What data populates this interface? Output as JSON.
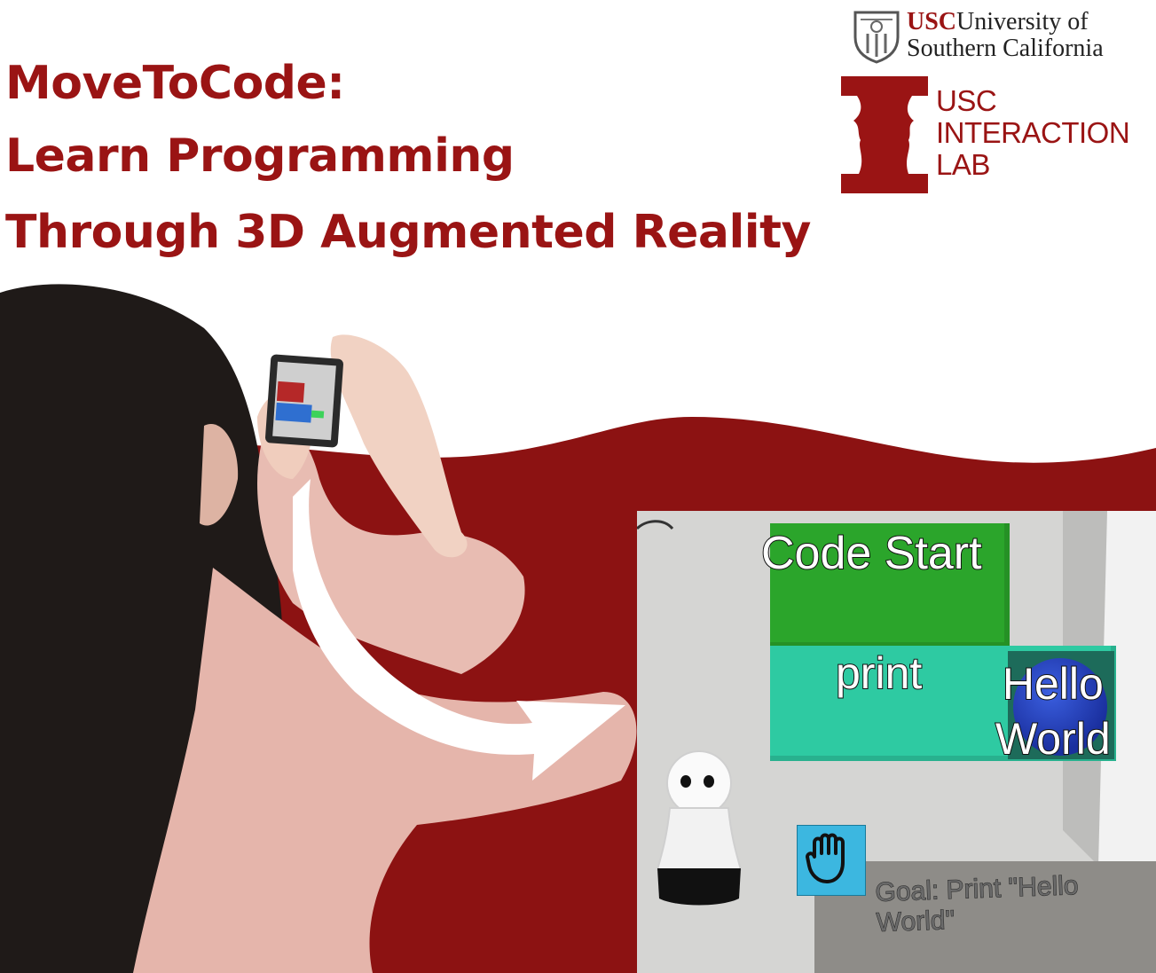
{
  "title": {
    "line1": "MoveToCode:",
    "line2": "Learn Programming",
    "line3": "Through 3D Augmented Reality"
  },
  "logos": {
    "usc_abbrev": "USC",
    "usc_university": "University of",
    "usc_california": "Southern California",
    "lab_line1": "USC",
    "lab_line2": "INTERACTION",
    "lab_line3": "LAB"
  },
  "ar_scene": {
    "code_start": "Code Start",
    "print_label": "print",
    "hello_world_line1": "Hello",
    "hello_world_line2": "World",
    "goal_line1": "Goal: Print \"Hello",
    "goal_line2": "World\""
  },
  "colors": {
    "brand_red": "#9a1414",
    "block_green": "#2ba52b",
    "block_teal": "#2ecaa2",
    "block_blue": "#1a3fb0"
  }
}
